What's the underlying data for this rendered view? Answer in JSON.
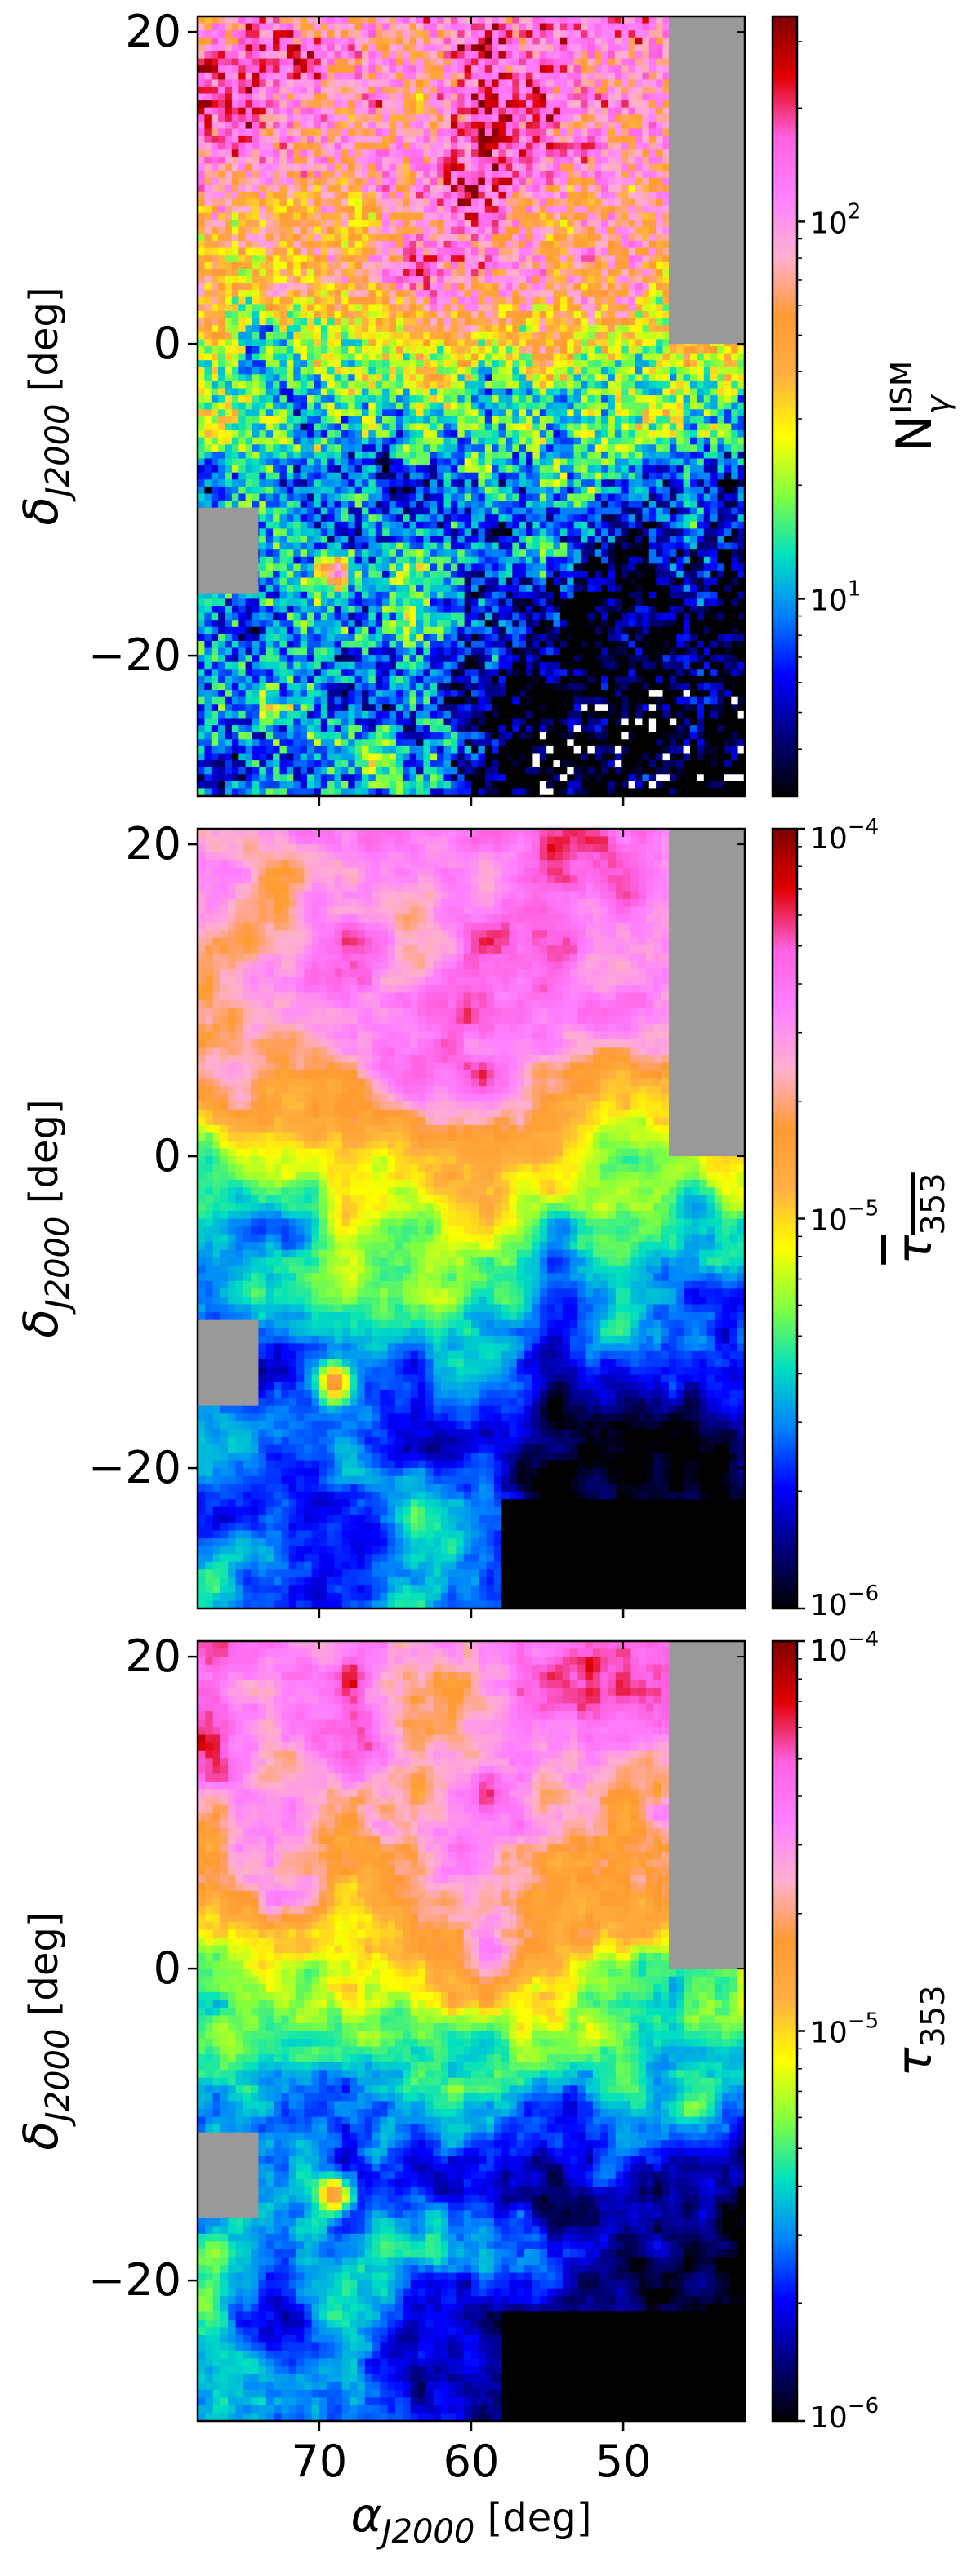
{
  "chart_data": [
    {
      "type": "heatmap",
      "panel": "top",
      "ylabel": "δ_J2000 [deg]",
      "ylabel_sym": "δ",
      "ylabel_sub": "J2000",
      "ylabel_unit": " [deg]",
      "xlim": [
        78,
        42
      ],
      "ylim": [
        -29,
        21
      ],
      "yticks": [
        20,
        0,
        -20
      ],
      "ytick_labels": [
        "20",
        "0",
        "−20"
      ],
      "xticks": [
        70,
        60,
        50
      ],
      "xtick_labels": [],
      "colorbar": {
        "scale": "log",
        "label_sym": "N",
        "label_sub": "γ",
        "label_sup": "ISM",
        "range": [
          3,
          350
        ],
        "ticks": [
          {
            "value": 10,
            "base": "10",
            "exp": "1"
          },
          {
            "value": 100,
            "base": "10",
            "exp": "2"
          }
        ]
      },
      "masked_regions": [
        {
          "ra": [
            47,
            42
          ],
          "dec": [
            0,
            21
          ]
        },
        {
          "ra": [
            78,
            74
          ],
          "dec": [
            -16,
            -10.5
          ]
        }
      ],
      "description_features": {
        "peak_region": "north (dec > 5)",
        "low_region": "south-east (dec < -20)",
        "compact_source": [
          69,
          -14.5
        ]
      }
    },
    {
      "type": "heatmap",
      "panel": "middle",
      "ylabel": "δ_J2000 [deg]",
      "ylabel_sym": "δ",
      "ylabel_sub": "J2000",
      "ylabel_unit": " [deg]",
      "xlim": [
        78,
        42
      ],
      "ylim": [
        -29,
        21
      ],
      "yticks": [
        20,
        0,
        -20
      ],
      "ytick_labels": [
        "20",
        "0",
        "−20"
      ],
      "xticks": [
        70,
        60,
        50
      ],
      "xtick_labels": [],
      "colorbar": {
        "scale": "log",
        "label_sym": "τ",
        "label_sub": "353",
        "label_overline": true,
        "range": [
          1e-06,
          0.0001
        ],
        "ticks": [
          {
            "value": 1e-06,
            "base": "10",
            "exp": "−6"
          },
          {
            "value": 1e-05,
            "base": "10",
            "exp": "−5"
          },
          {
            "value": 0.0001,
            "base": "10",
            "exp": "−4"
          }
        ]
      },
      "masked_regions": [
        {
          "ra": [
            47,
            42
          ],
          "dec": [
            0,
            21
          ]
        },
        {
          "ra": [
            78,
            74
          ],
          "dec": [
            -16,
            -10.5
          ]
        }
      ]
    },
    {
      "type": "heatmap",
      "panel": "bottom",
      "ylabel": "δ_J2000 [deg]",
      "ylabel_sym": "δ",
      "ylabel_sub": "J2000",
      "ylabel_unit": " [deg]",
      "xlabel": "α_J2000 [deg]",
      "xlabel_sym": "α",
      "xlabel_sub": "J2000",
      "xlabel_unit": " [deg]",
      "xlim": [
        78,
        42
      ],
      "ylim": [
        -29,
        21
      ],
      "yticks": [
        20,
        0,
        -20
      ],
      "ytick_labels": [
        "20",
        "0",
        "−20"
      ],
      "xticks": [
        70,
        60,
        50
      ],
      "xtick_labels": [
        "70",
        "60",
        "50"
      ],
      "colorbar": {
        "scale": "log",
        "label_sym": "τ",
        "label_sub": "353",
        "label_overline": false,
        "range": [
          1e-06,
          0.0001
        ],
        "ticks": [
          {
            "value": 1e-06,
            "base": "10",
            "exp": "−6"
          },
          {
            "value": 1e-05,
            "base": "10",
            "exp": "−5"
          },
          {
            "value": 0.0001,
            "base": "10",
            "exp": "−4"
          }
        ]
      },
      "masked_regions": [
        {
          "ra": [
            47,
            42
          ],
          "dec": [
            0,
            21
          ]
        },
        {
          "ra": [
            78,
            74
          ],
          "dec": [
            -16,
            -10.5
          ]
        }
      ]
    }
  ],
  "colors": {
    "mask": "#999999",
    "colormap": [
      "#000000",
      "#00007f",
      "#0000ff",
      "#0080ff",
      "#00e0c0",
      "#80ff40",
      "#ffff00",
      "#ffb040",
      "#ff9a30",
      "#ffb0d0",
      "#ff80ff",
      "#ff60e0",
      "#e00000",
      "#800000"
    ]
  }
}
